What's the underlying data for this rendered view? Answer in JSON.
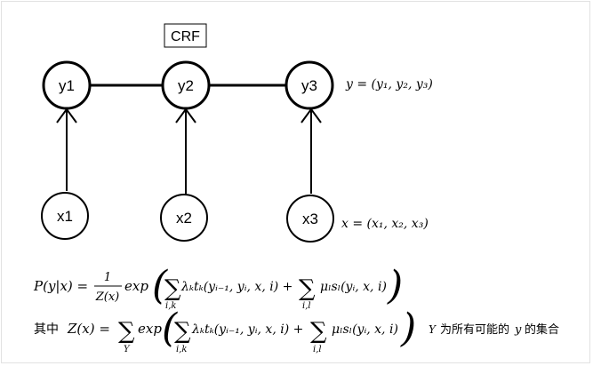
{
  "title": "CRF",
  "nodes": {
    "y1": "y1",
    "y2": "y2",
    "y3": "y3",
    "x1": "x1",
    "x2": "x2",
    "x3": "x3"
  },
  "annotations": {
    "y_def": "y = (y₁, y₂, y₃)",
    "x_def": "x = (x₁, x₂, x₃)"
  },
  "formula1": {
    "lhs": "P(y|x) =",
    "frac_num": "1",
    "frac_den": "Z(x)",
    "exp": "exp",
    "sum1_sub": "i,k",
    "term1": "λₖtₖ(yᵢ₋₁, yᵢ, x, i) +",
    "sum2_sub": "i,l",
    "term2": "μₗsₗ(yᵢ, x, i)"
  },
  "formula2": {
    "prefix": "其中",
    "lhs": "Z(x) =",
    "outer_sum_sub": "Y",
    "exp": "exp",
    "sum1_sub": "i,k",
    "term1": "λₖtₖ(yᵢ₋₁, yᵢ, x, i) +",
    "sum2_sub": "i,l",
    "term2": "μₗsₗ(yᵢ, x, i)",
    "note_Y": "Y",
    "note_text1": "为所有可能的",
    "note_y": "y",
    "note_text2": "的集合"
  },
  "colors": {
    "stroke": "#000000",
    "background": "#ffffff"
  }
}
